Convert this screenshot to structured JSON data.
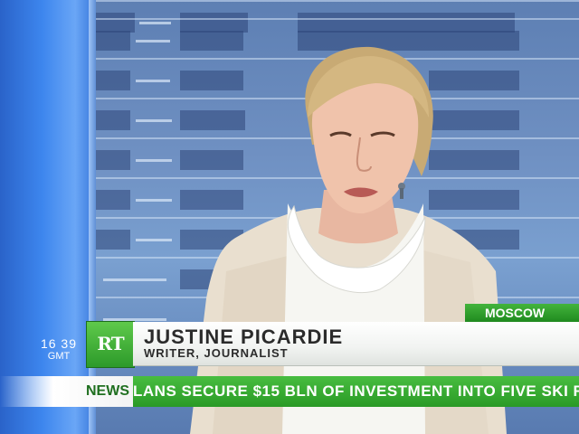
{
  "overlay": {
    "location": "MOSCOW",
    "logo_text": "RT",
    "guest_name": "JUSTINE PICARDIE",
    "guest_title": "WRITER, JOURNALIST",
    "clock_time": "16 39",
    "clock_zone": "GMT"
  },
  "ticker": {
    "label": "NEWS",
    "headline": "LANS SECURE $15 BLN OF INVESTMENT INTO FIVE SKI R"
  },
  "colors": {
    "brand_green": "#2d9a2a",
    "studio_blue": "#3d86ee"
  }
}
